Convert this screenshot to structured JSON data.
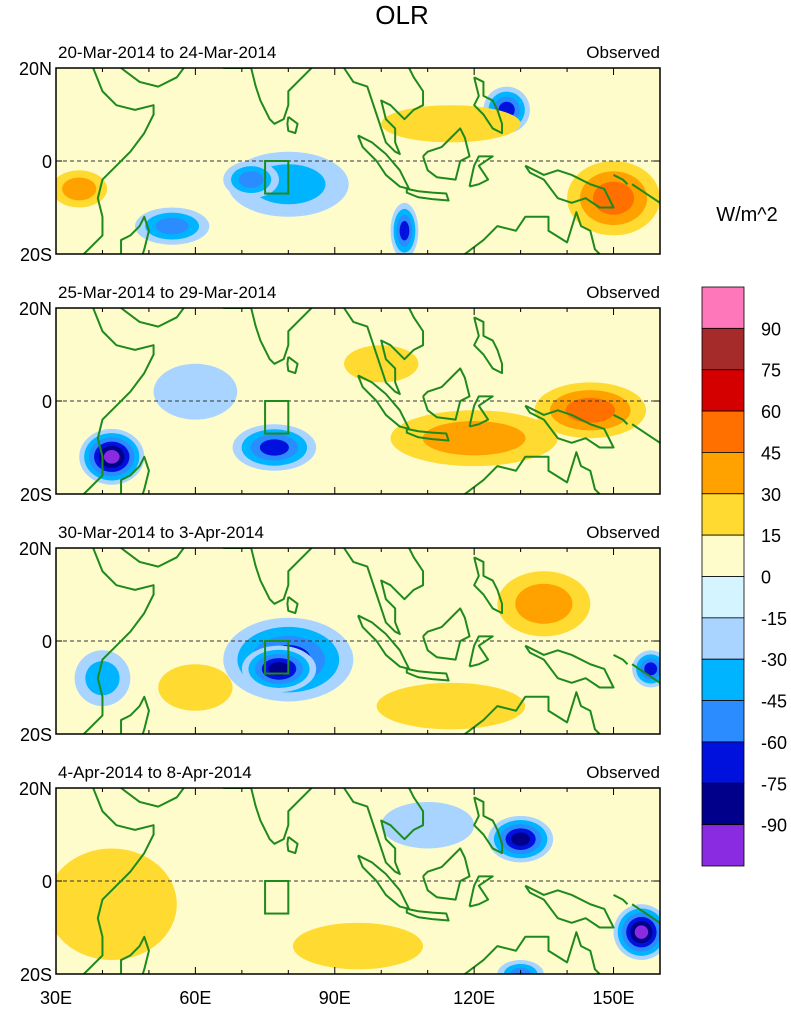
{
  "chart_data": {
    "type": "heatmap",
    "title": "OLR",
    "units": "W/m^2",
    "x_range_deg": [
      30,
      160
    ],
    "y_range_deg": [
      -20,
      20
    ],
    "xtick_labels": [
      {
        "value": 30,
        "label": "30E"
      },
      {
        "value": 60,
        "label": "60E"
      },
      {
        "value": 90,
        "label": "90E"
      },
      {
        "value": 120,
        "label": "120E"
      },
      {
        "value": 150,
        "label": "150E"
      }
    ],
    "ytick_labels": [
      {
        "value": 20,
        "label": "20N"
      },
      {
        "value": 0,
        "label": "0"
      },
      {
        "value": -20,
        "label": "20S"
      }
    ],
    "legend": {
      "labels": [
        "90",
        "75",
        "60",
        "45",
        "30",
        "15",
        "0",
        "-15",
        "-30",
        "-45",
        "-60",
        "-75",
        "-90"
      ],
      "colors": [
        "#ff77bb",
        "#a52a2a",
        "#d40000",
        "#ff7000",
        "#ffa200",
        "#ffda30",
        "#fffccc",
        "#d4f4ff",
        "#a8d4ff",
        "#00b4ff",
        "#2a8cff",
        "#0010dd",
        "#00008b",
        "#8a2be2"
      ]
    },
    "box_region": {
      "lon": [
        75,
        80
      ],
      "lat": [
        -7,
        0
      ]
    },
    "panels": [
      {
        "period": "20-Mar-2014 to 24-Mar-2014",
        "label": "Observed",
        "anomaly_blobs": [
          {
            "lon": 80,
            "lat": -5,
            "rx": 13,
            "ry": 7,
            "value": -30
          },
          {
            "lon": 72,
            "lat": -4,
            "rx": 6,
            "ry": 4,
            "value": -45
          },
          {
            "lon": 55,
            "lat": -14,
            "rx": 8,
            "ry": 4,
            "value": -45
          },
          {
            "lon": 105,
            "lat": -15,
            "rx": 3,
            "ry": 6,
            "value": -60
          },
          {
            "lon": 127,
            "lat": 11,
            "rx": 5,
            "ry": 5,
            "value": -60
          },
          {
            "lon": 115,
            "lat": 8,
            "rx": 15,
            "ry": 4,
            "value": 15
          },
          {
            "lon": 150,
            "lat": -8,
            "rx": 10,
            "ry": 8,
            "value": 45
          },
          {
            "lon": 35,
            "lat": -6,
            "rx": 6,
            "ry": 4,
            "value": 30
          }
        ]
      },
      {
        "period": "25-Mar-2014 to 29-Mar-2014",
        "label": "Observed",
        "anomaly_blobs": [
          {
            "lon": 42,
            "lat": -12,
            "rx": 7,
            "ry": 6,
            "value": -90
          },
          {
            "lon": 77,
            "lat": -10,
            "rx": 9,
            "ry": 5,
            "value": -60
          },
          {
            "lon": 60,
            "lat": 2,
            "rx": 9,
            "ry": 6,
            "value": -15
          },
          {
            "lon": 120,
            "lat": -8,
            "rx": 18,
            "ry": 6,
            "value": 30
          },
          {
            "lon": 145,
            "lat": -2,
            "rx": 12,
            "ry": 6,
            "value": 45
          },
          {
            "lon": 100,
            "lat": 8,
            "rx": 8,
            "ry": 4,
            "value": 15
          }
        ]
      },
      {
        "period": "30-Mar-2014 to 3-Apr-2014",
        "label": "Observed",
        "anomaly_blobs": [
          {
            "lon": 80,
            "lat": -4,
            "rx": 14,
            "ry": 9,
            "value": -60
          },
          {
            "lon": 78,
            "lat": -6,
            "rx": 8,
            "ry": 5,
            "value": -75
          },
          {
            "lon": 40,
            "lat": -8,
            "rx": 6,
            "ry": 6,
            "value": -30
          },
          {
            "lon": 158,
            "lat": -6,
            "rx": 4,
            "ry": 4,
            "value": -60
          },
          {
            "lon": 135,
            "lat": 8,
            "rx": 10,
            "ry": 7,
            "value": 30
          },
          {
            "lon": 115,
            "lat": -14,
            "rx": 16,
            "ry": 5,
            "value": 15
          },
          {
            "lon": 60,
            "lat": -10,
            "rx": 8,
            "ry": 5,
            "value": 15
          }
        ]
      },
      {
        "period": "4-Apr-2014 to 8-Apr-2014",
        "label": "Observed",
        "anomaly_blobs": [
          {
            "lon": 156,
            "lat": -11,
            "rx": 6,
            "ry": 6,
            "value": -90
          },
          {
            "lon": 130,
            "lat": 9,
            "rx": 7,
            "ry": 5,
            "value": -75
          },
          {
            "lon": 130,
            "lat": -20,
            "rx": 5,
            "ry": 3,
            "value": -45
          },
          {
            "lon": 42,
            "lat": -5,
            "rx": 14,
            "ry": 12,
            "value": 15
          },
          {
            "lon": 95,
            "lat": -14,
            "rx": 14,
            "ry": 5,
            "value": 15
          },
          {
            "lon": 110,
            "lat": 12,
            "rx": 10,
            "ry": 5,
            "value": -15
          }
        ]
      }
    ]
  }
}
